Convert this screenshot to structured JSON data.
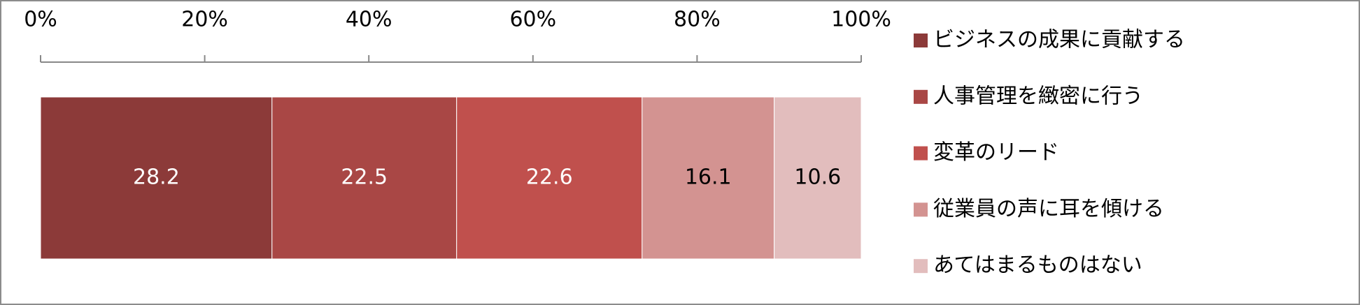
{
  "chart_data": {
    "type": "stacked_barh",
    "categories": [
      null
    ],
    "series": [
      {
        "name": "ビジネスの成果に貢献する",
        "color": "#8c3a39",
        "label_color": "#ffffff",
        "values": [
          28.2
        ]
      },
      {
        "name": "人事管理を緻密に行う",
        "color": "#a94745",
        "label_color": "#ffffff",
        "values": [
          22.5
        ]
      },
      {
        "name": "変革のリード",
        "color": "#c0504d",
        "label_color": "#ffffff",
        "values": [
          22.6
        ]
      },
      {
        "name": "従業員の声に耳を傾ける",
        "color": "#d39391",
        "label_color": "#000000",
        "values": [
          16.1
        ]
      },
      {
        "name": "あてはまるものはない",
        "color": "#e2bdbd",
        "label_color": "#000000",
        "values": [
          10.6
        ]
      }
    ],
    "xlim": [
      0,
      100
    ],
    "xticks": [
      {
        "value": 0,
        "label": "0%"
      },
      {
        "value": 20,
        "label": "20%"
      },
      {
        "value": 40,
        "label": "40%"
      },
      {
        "value": 60,
        "label": "60%"
      },
      {
        "value": 80,
        "label": "80%"
      },
      {
        "value": 100,
        "label": "100%"
      }
    ],
    "legend": "right"
  }
}
